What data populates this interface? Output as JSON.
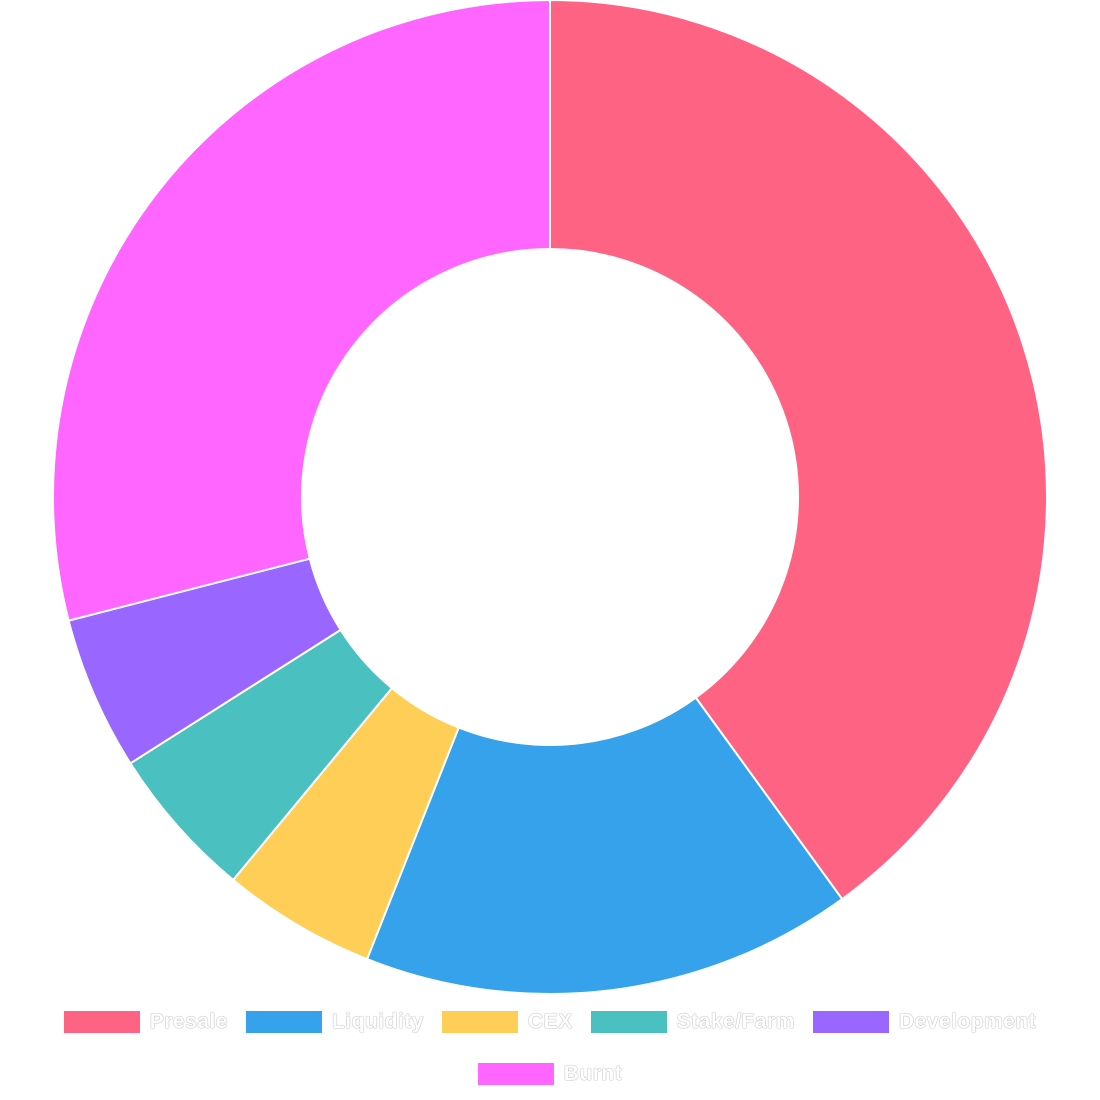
{
  "chart_data": {
    "type": "doughnut",
    "labels": [
      "Presale",
      "Liquidity",
      "CEX",
      "Stake/Farm",
      "Development",
      "Burnt"
    ],
    "values": [
      40,
      16,
      5,
      5,
      5,
      29
    ],
    "colors": [
      "#FF6384",
      "#36A2EB",
      "#FFCE56",
      "#4BC0C0",
      "#9966FF",
      "#FF66FF"
    ],
    "legend_position": "bottom"
  }
}
